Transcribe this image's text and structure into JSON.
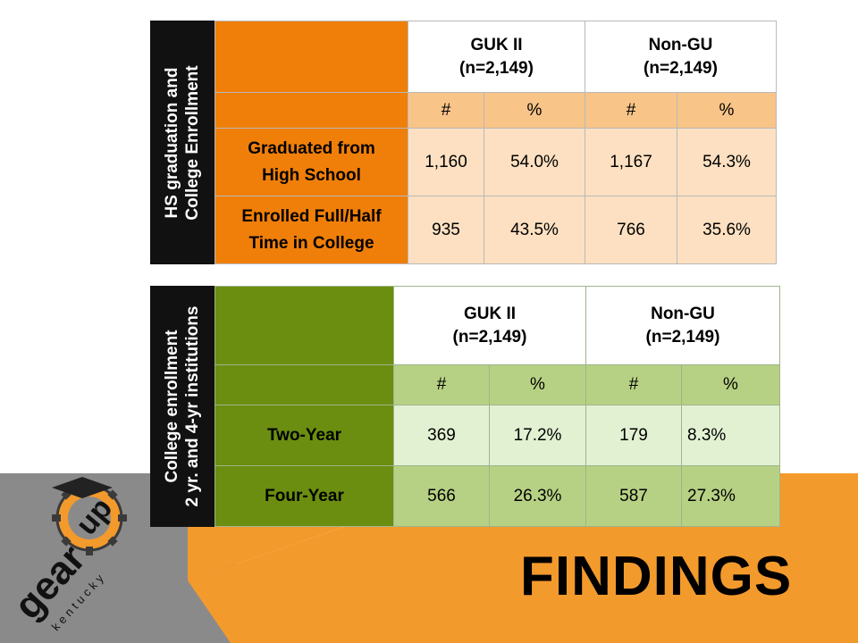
{
  "title": "FINDINGS",
  "logo": {
    "word1": "gear",
    "word2": "up",
    "sub": "kentucky"
  },
  "colors": {
    "orange": "#f07f09",
    "green": "#6b8e10",
    "background_orange": "#f39a2c"
  },
  "table1": {
    "side_label_line1": "HS graduation and",
    "side_label_line2": "College Enrollment",
    "groups": [
      {
        "name": "GUK II",
        "n": "(n=2,149)"
      },
      {
        "name": "Non-GU",
        "n": "(n=2,149)"
      }
    ],
    "subheaders": [
      "#",
      "%",
      "#",
      "%"
    ],
    "rows": [
      {
        "label_line1": "Graduated from",
        "label_line2": "High School",
        "values": [
          "1,160",
          "54.0%",
          "1,167",
          "54.3%"
        ]
      },
      {
        "label_line1": "Enrolled Full/Half",
        "label_line2": "Time in College",
        "values": [
          "935",
          "43.5%",
          "766",
          "35.6%"
        ]
      }
    ]
  },
  "table2": {
    "side_label_line1": "College enrollment",
    "side_label_line2": "2 yr. and 4-yr institutions",
    "groups": [
      {
        "name": "GUK II",
        "n": "(n=2,149)"
      },
      {
        "name": "Non-GU",
        "n": "(n=2,149)"
      }
    ],
    "subheaders": [
      "#",
      "%",
      "#",
      "%"
    ],
    "rows": [
      {
        "label": "Two-Year",
        "values": [
          "369",
          "17.2%",
          "179",
          "8.3%"
        ]
      },
      {
        "label": "Four-Year",
        "values": [
          "566",
          "26.3%",
          "587",
          "27.3%"
        ]
      }
    ]
  }
}
